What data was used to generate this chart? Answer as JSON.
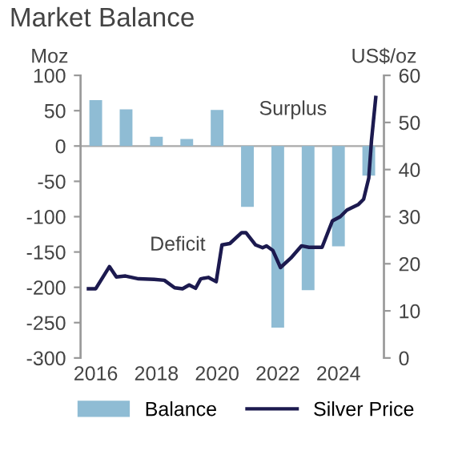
{
  "chart_data": {
    "type": "bar",
    "title": "Market Balance",
    "ylabel": "Moz",
    "y2label": "US$/oz",
    "annotations": [
      "Surplus",
      "Deficit"
    ],
    "x": [
      2016,
      2017,
      2018,
      2019,
      2020,
      2021,
      2022,
      2023,
      2024,
      2025
    ],
    "series": [
      {
        "name": "Balance",
        "color": "#8fbcd4",
        "values": [
          65,
          52,
          13,
          10,
          51,
          -86,
          -257,
          -204,
          -142,
          -42
        ]
      },
      {
        "name": "Silver Price",
        "type": "line",
        "axis": "y2",
        "color": "#1c1a4f",
        "x": [
          2015.76,
          2016.0,
          2016.45,
          2016.68,
          2016.98,
          2017.41,
          2017.92,
          2018.26,
          2018.6,
          2018.86,
          2019.08,
          2019.29,
          2019.46,
          2019.71,
          2019.97,
          2020.16,
          2020.42,
          2020.81,
          2020.95,
          2021.27,
          2021.5,
          2021.63,
          2021.84,
          2022.09,
          2022.43,
          2022.78,
          2023.03,
          2023.46,
          2023.8,
          2024.06,
          2024.28,
          2024.66,
          2024.83,
          2025.0,
          2025.09,
          2025.23
        ],
        "values": [
          14.7,
          14.7,
          19.4,
          17.2,
          17.4,
          16.8,
          16.7,
          16.5,
          14.9,
          14.7,
          15.5,
          14.8,
          16.8,
          17.1,
          16.2,
          24.0,
          24.3,
          26.6,
          26.6,
          24.0,
          23.4,
          23.8,
          22.8,
          19.2,
          21.2,
          23.8,
          23.5,
          23.5,
          29.1,
          30.0,
          31.4,
          32.6,
          33.7,
          38.2,
          46.2,
          55.3
        ]
      }
    ],
    "xlim": [
      2015.5,
      2025.5
    ],
    "xticks": [
      2016,
      2018,
      2020,
      2022,
      2024
    ],
    "ylim": [
      -300,
      100
    ],
    "yticks": [
      -300,
      -250,
      -200,
      -150,
      -100,
      -50,
      0,
      50,
      100
    ],
    "y2lim": [
      0,
      60
    ],
    "y2ticks": [
      0,
      10,
      20,
      30,
      40,
      50,
      60
    ],
    "ref_lines": [
      {
        "axis": "y",
        "value": 0,
        "color": "#aaaaaa"
      }
    ],
    "legend": "bottom",
    "grid": false
  }
}
